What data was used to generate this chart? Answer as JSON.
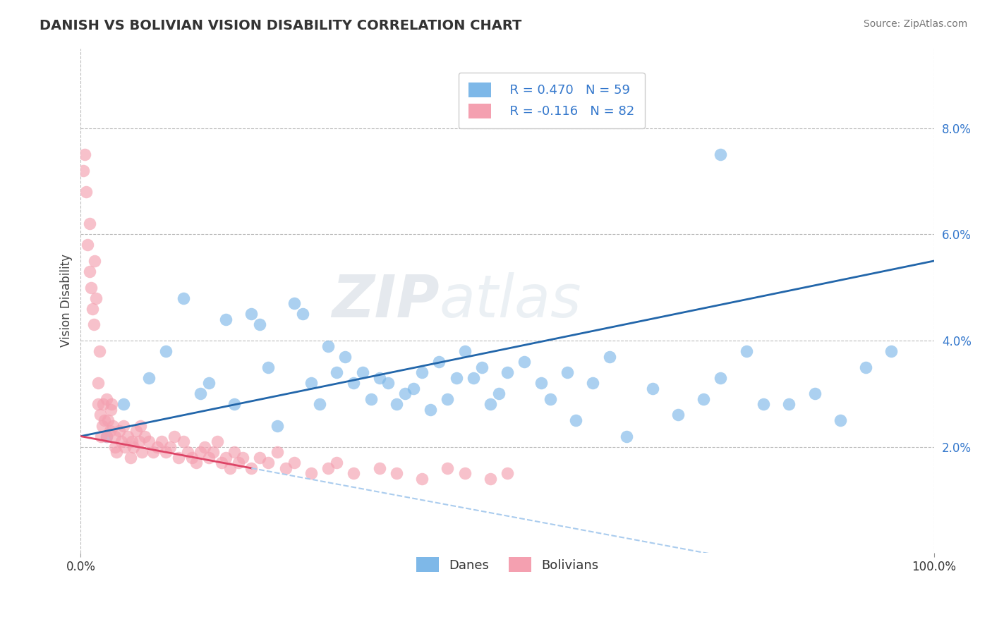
{
  "title": "DANISH VS BOLIVIAN VISION DISABILITY CORRELATION CHART",
  "source": "Source: ZipAtlas.com",
  "ylabel": "Vision Disability",
  "xlim": [
    0,
    100
  ],
  "ylim": [
    0.0,
    9.5
  ],
  "yticks": [
    2,
    4,
    6,
    8
  ],
  "ytick_labels": [
    "2.0%",
    "4.0%",
    "6.0%",
    "8.0%"
  ],
  "legend_r_danes": "R = 0.470",
  "legend_n_danes": "N = 59",
  "legend_r_bolivians": "R = -0.116",
  "legend_n_bolivians": "N = 82",
  "danes_color": "#7eb8e8",
  "bolivians_color": "#f4a0b0",
  "danes_trend_color": "#2266aa",
  "bolivians_trend_color": "#dd4466",
  "dashed_ext_color": "#aaccee",
  "watermark_zip": "ZIP",
  "watermark_atlas": "atlas",
  "background_color": "#ffffff",
  "grid_color": "#cccccc",
  "danes_x": [
    3,
    5,
    8,
    10,
    12,
    14,
    15,
    17,
    18,
    20,
    21,
    22,
    23,
    25,
    26,
    27,
    28,
    29,
    30,
    31,
    32,
    33,
    34,
    35,
    36,
    37,
    38,
    39,
    40,
    41,
    42,
    43,
    44,
    45,
    46,
    47,
    48,
    49,
    50,
    52,
    54,
    55,
    57,
    58,
    60,
    62,
    64,
    67,
    70,
    73,
    75,
    78,
    80,
    83,
    86,
    89,
    92,
    75,
    95
  ],
  "danes_y": [
    2.2,
    2.8,
    3.3,
    3.8,
    4.8,
    3.0,
    3.2,
    4.4,
    2.8,
    4.5,
    4.3,
    3.5,
    2.4,
    4.7,
    4.5,
    3.2,
    2.8,
    3.9,
    3.4,
    3.7,
    3.2,
    3.4,
    2.9,
    3.3,
    3.2,
    2.8,
    3.0,
    3.1,
    3.4,
    2.7,
    3.6,
    2.9,
    3.3,
    3.8,
    3.3,
    3.5,
    2.8,
    3.0,
    3.4,
    3.6,
    3.2,
    2.9,
    3.4,
    2.5,
    3.2,
    3.7,
    2.2,
    3.1,
    2.6,
    2.9,
    3.3,
    3.8,
    2.8,
    2.8,
    3.0,
    2.5,
    3.5,
    7.5,
    3.8
  ],
  "bolivians_x": [
    0.3,
    0.5,
    0.6,
    0.8,
    1.0,
    1.0,
    1.2,
    1.4,
    1.5,
    1.6,
    1.8,
    2.0,
    2.0,
    2.2,
    2.3,
    2.4,
    2.5,
    2.6,
    2.8,
    3.0,
    3.0,
    3.2,
    3.4,
    3.5,
    3.6,
    3.8,
    4.0,
    4.0,
    4.2,
    4.5,
    4.8,
    5.0,
    5.2,
    5.5,
    5.8,
    6.0,
    6.2,
    6.5,
    6.8,
    7.0,
    7.2,
    7.5,
    8.0,
    8.5,
    9.0,
    9.5,
    10.0,
    10.5,
    11.0,
    11.5,
    12.0,
    12.5,
    13.0,
    13.5,
    14.0,
    14.5,
    15.0,
    15.5,
    16.0,
    16.5,
    17.0,
    17.5,
    18.0,
    18.5,
    19.0,
    20.0,
    21.0,
    22.0,
    23.0,
    24.0,
    25.0,
    27.0,
    29.0,
    30.0,
    32.0,
    35.0,
    37.0,
    40.0,
    43.0,
    45.0,
    48.0,
    50.0
  ],
  "bolivians_y": [
    7.2,
    7.5,
    6.8,
    5.8,
    5.3,
    6.2,
    5.0,
    4.6,
    4.3,
    5.5,
    4.8,
    2.8,
    3.2,
    3.8,
    2.6,
    2.2,
    2.4,
    2.8,
    2.5,
    2.2,
    2.9,
    2.5,
    2.3,
    2.7,
    2.8,
    2.4,
    2.2,
    2.0,
    1.9,
    2.3,
    2.1,
    2.4,
    2.0,
    2.2,
    1.8,
    2.1,
    2.0,
    2.3,
    2.1,
    2.4,
    1.9,
    2.2,
    2.1,
    1.9,
    2.0,
    2.1,
    1.9,
    2.0,
    2.2,
    1.8,
    2.1,
    1.9,
    1.8,
    1.7,
    1.9,
    2.0,
    1.8,
    1.9,
    2.1,
    1.7,
    1.8,
    1.6,
    1.9,
    1.7,
    1.8,
    1.6,
    1.8,
    1.7,
    1.9,
    1.6,
    1.7,
    1.5,
    1.6,
    1.7,
    1.5,
    1.6,
    1.5,
    1.4,
    1.6,
    1.5,
    1.4,
    1.5
  ]
}
